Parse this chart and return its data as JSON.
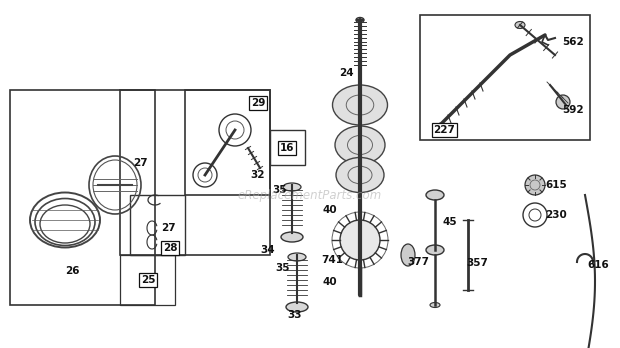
{
  "bg_color": "#ffffff",
  "watermark": "eReplacementParts.com",
  "line_color": "#333333",
  "label_color": "#111111"
}
